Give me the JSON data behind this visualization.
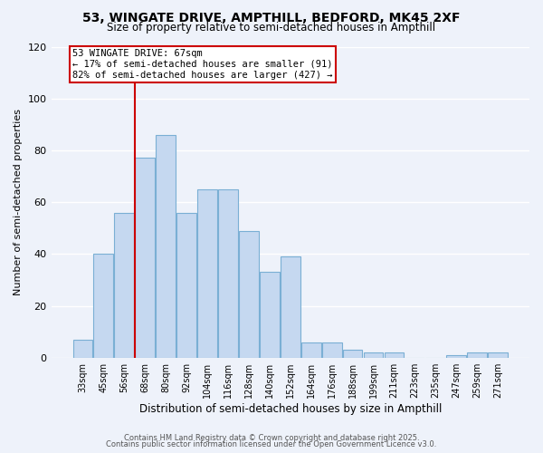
{
  "title": "53, WINGATE DRIVE, AMPTHILL, BEDFORD, MK45 2XF",
  "subtitle": "Size of property relative to semi-detached houses in Ampthill",
  "xlabel": "Distribution of semi-detached houses by size in Ampthill",
  "ylabel": "Number of semi-detached properties",
  "bar_labels": [
    "33sqm",
    "45sqm",
    "56sqm",
    "68sqm",
    "80sqm",
    "92sqm",
    "104sqm",
    "116sqm",
    "128sqm",
    "140sqm",
    "152sqm",
    "164sqm",
    "176sqm",
    "188sqm",
    "199sqm",
    "211sqm",
    "223sqm",
    "235sqm",
    "247sqm",
    "259sqm",
    "271sqm"
  ],
  "bar_heights": [
    7,
    40,
    56,
    77,
    86,
    56,
    65,
    65,
    49,
    33,
    39,
    6,
    6,
    3,
    2,
    2,
    0,
    0,
    1,
    2,
    2
  ],
  "bar_color": "#c5d8f0",
  "bar_edge_color": "#7aafd4",
  "annotation_title": "53 WINGATE DRIVE: 67sqm",
  "annotation_line1": "← 17% of semi-detached houses are smaller (91)",
  "annotation_line2": "82% of semi-detached houses are larger (427) →",
  "annotation_box_color": "#ffffff",
  "annotation_box_edge": "#cc0000",
  "vline_color": "#cc0000",
  "ylim": [
    0,
    120
  ],
  "yticks": [
    0,
    20,
    40,
    60,
    80,
    100,
    120
  ],
  "background_color": "#eef2fa",
  "grid_color": "#ffffff",
  "footer1": "Contains HM Land Registry data © Crown copyright and database right 2025.",
  "footer2": "Contains public sector information licensed under the Open Government Licence v3.0."
}
